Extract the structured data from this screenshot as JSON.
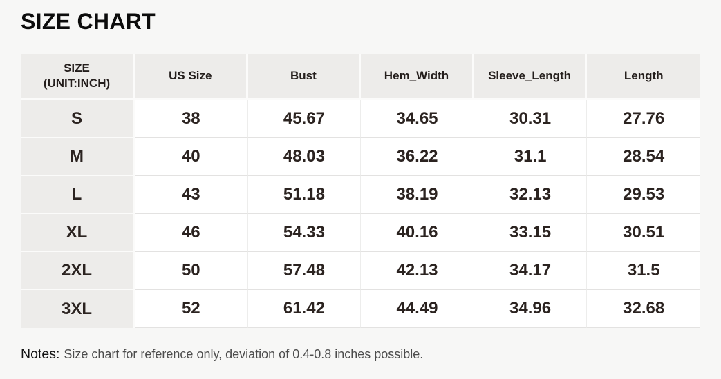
{
  "title": "SIZE CHART",
  "chart_data": {
    "type": "table",
    "title": "SIZE CHART",
    "unit_note": "UNIT:INCH",
    "columns": [
      "SIZE\n(UNIT:INCH)",
      "US Size",
      "Bust",
      "Hem_Width",
      "Sleeve_Length",
      "Length"
    ],
    "rows": [
      [
        "S",
        "38",
        "45.67",
        "34.65",
        "30.31",
        "27.76"
      ],
      [
        "M",
        "40",
        "48.03",
        "36.22",
        "31.1",
        "28.54"
      ],
      [
        "L",
        "43",
        "51.18",
        "38.19",
        "32.13",
        "29.53"
      ],
      [
        "XL",
        "46",
        "54.33",
        "40.16",
        "33.15",
        "30.51"
      ],
      [
        "2XL",
        "50",
        "57.48",
        "42.13",
        "34.17",
        "31.5"
      ],
      [
        "3XL",
        "52",
        "61.42",
        "44.49",
        "34.96",
        "32.68"
      ]
    ],
    "layout": {
      "header_bg": "#edecea",
      "row_label_bg": "#edecea",
      "cell_bg": "#ffffff",
      "page_bg": "#f7f7f6",
      "grid": "light"
    }
  },
  "notes": {
    "label": "Notes:",
    "text": "Size chart for reference only, deviation of 0.4-0.8 inches possible."
  },
  "colors": {
    "title_text": "#0c0c0c",
    "table_text": "#2b2320",
    "notes_text": "#4c4c4c"
  }
}
